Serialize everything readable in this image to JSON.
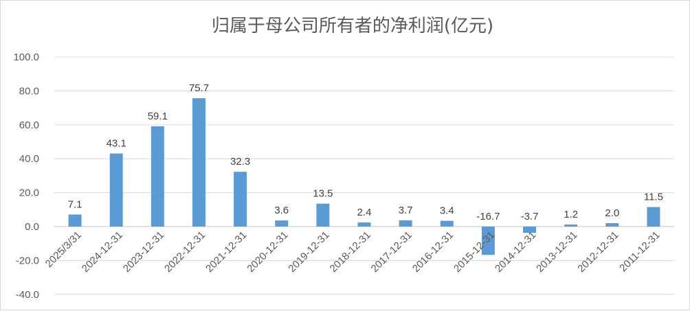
{
  "chart_data": {
    "type": "bar",
    "title": "归属于母公司所有者的净利润(亿元)",
    "categories": [
      "2025/3/31",
      "2024-12-31",
      "2023-12-31",
      "2022-12-31",
      "2021-12-31",
      "2020-12-31",
      "2019-12-31",
      "2018-12-31",
      "2017-12-31",
      "2016-12-31",
      "2015-12-31",
      "2014-12-31",
      "2013-12-31",
      "2012-12-31",
      "2011-12-31"
    ],
    "values": [
      7.1,
      43.1,
      59.1,
      75.7,
      32.3,
      3.6,
      13.5,
      2.4,
      3.7,
      3.4,
      -16.7,
      -3.7,
      1.2,
      2.0,
      11.5
    ],
    "data_labels": [
      "7.1",
      "43.1",
      "59.1",
      "75.7",
      "32.3",
      "3.6",
      "13.5",
      "2.4",
      "3.7",
      "3.4",
      "-16.7",
      "-3.7",
      "1.2",
      "2.0",
      "11.5"
    ],
    "ylim": [
      -40,
      100
    ],
    "yticks": [
      "100.0",
      "80.0",
      "60.0",
      "40.0",
      "20.0",
      "0.0",
      "-20.0",
      "-40.0"
    ],
    "ytick_values": [
      100,
      80,
      60,
      40,
      20,
      0,
      -20,
      -40
    ],
    "grid": true,
    "legend": "none",
    "bar_color": "#5b9bd5",
    "grid_color": "#d9d9d9"
  }
}
